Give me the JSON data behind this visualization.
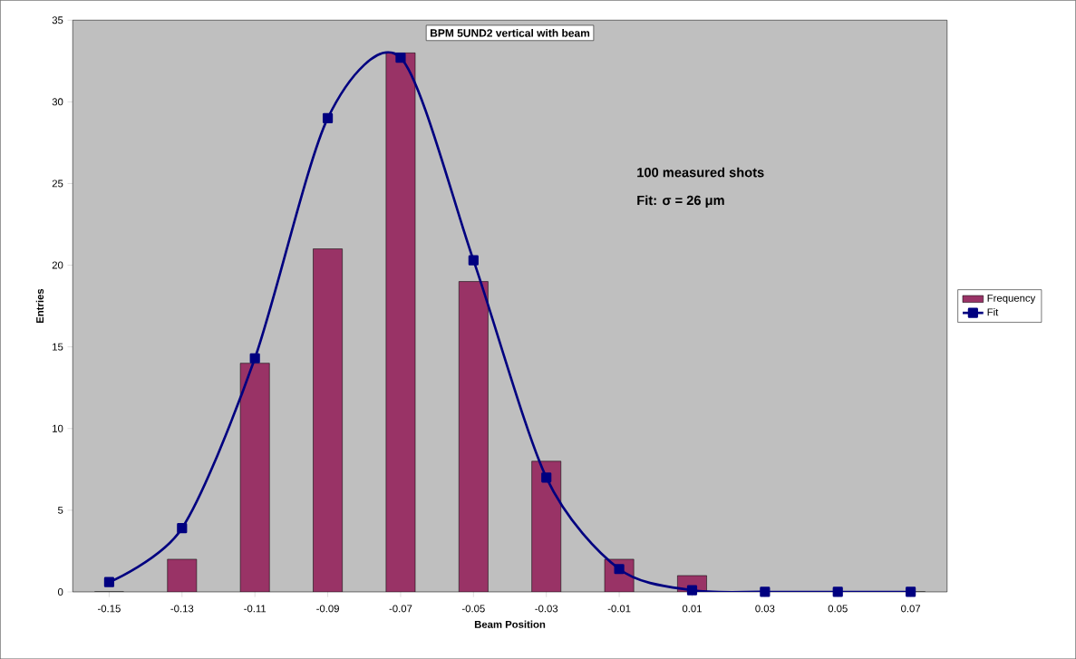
{
  "chart_data": {
    "type": "bar",
    "title": "BPM 5UND2 vertical with beam",
    "xlabel": "Beam Position",
    "ylabel": "Entries",
    "categories": [
      "-0.15",
      "-0.13",
      "-0.11",
      "-0.09",
      "-0.07",
      "-0.05",
      "-0.03",
      "-0.01",
      "0.01",
      "0.03",
      "0.05",
      "0.07"
    ],
    "series": [
      {
        "name": "Frequency",
        "color": "#993366",
        "values": [
          0,
          2,
          14,
          21,
          33,
          19,
          8,
          2,
          1,
          0,
          0,
          0
        ]
      },
      {
        "name": "Fit",
        "type": "line",
        "color": "#000080",
        "marker": "square",
        "line_style": "solid",
        "values": [
          0.6,
          3.9,
          14.3,
          29,
          32.7,
          20.3,
          7,
          1.4,
          0.1,
          0,
          0,
          0
        ]
      }
    ],
    "ylim": [
      0,
      35
    ],
    "yticks": [
      0,
      5,
      10,
      15,
      20,
      25,
      30,
      35
    ],
    "annotations": [
      "100 measured shots",
      "Fit: σ = 26 μm"
    ],
    "legend": "right",
    "grid": false
  }
}
